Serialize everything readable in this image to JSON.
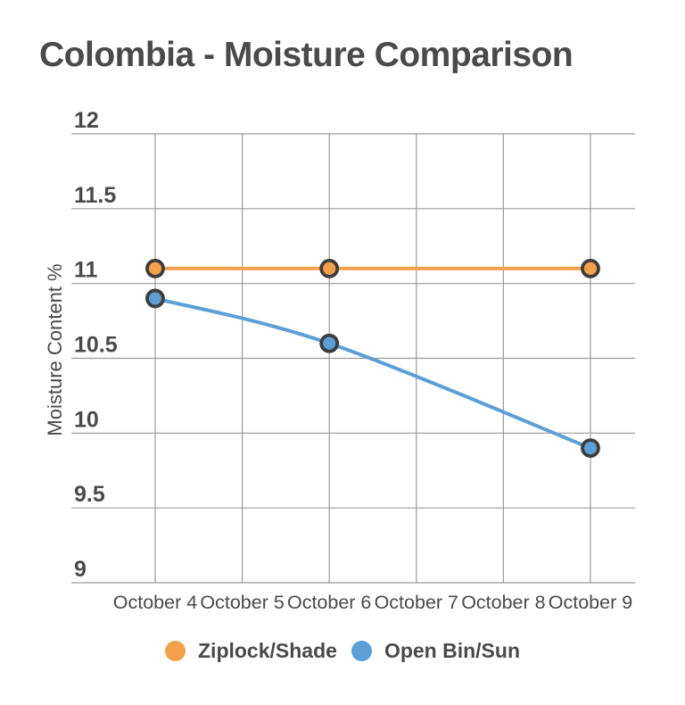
{
  "page": {
    "background": "#ffffff"
  },
  "chart_data": {
    "type": "line",
    "title": "Colombia - Moisture Comparison",
    "xlabel": "",
    "ylabel": "Moisture Content %",
    "categories": [
      "October 4",
      "October 5",
      "October 6",
      "October 7",
      "October 8",
      "October 9"
    ],
    "y_ticks": [
      "12",
      "11.5",
      "11",
      "10.5",
      "10",
      "9.5",
      "9"
    ],
    "ylim": [
      9,
      12
    ],
    "grid": true,
    "line_smooth": true,
    "legend_position": "bottom",
    "series": [
      {
        "name": "Ziplock/Shade",
        "color": "#F4A14D",
        "x": [
          "October 4",
          "October 6",
          "October 9"
        ],
        "category_indices": [
          0,
          2,
          5
        ],
        "values": [
          11.1,
          11.1,
          11.1
        ]
      },
      {
        "name": "Open Bin/Sun",
        "color": "#5B9FD6",
        "x": [
          "October 4",
          "October 6",
          "October 9"
        ],
        "category_indices": [
          0,
          2,
          5
        ],
        "values": [
          10.9,
          10.6,
          9.9
        ]
      }
    ],
    "colors": {
      "marker_stroke": "#3D3D3D",
      "grid": "#9B9B9B",
      "text": "#4A4A4A"
    }
  }
}
